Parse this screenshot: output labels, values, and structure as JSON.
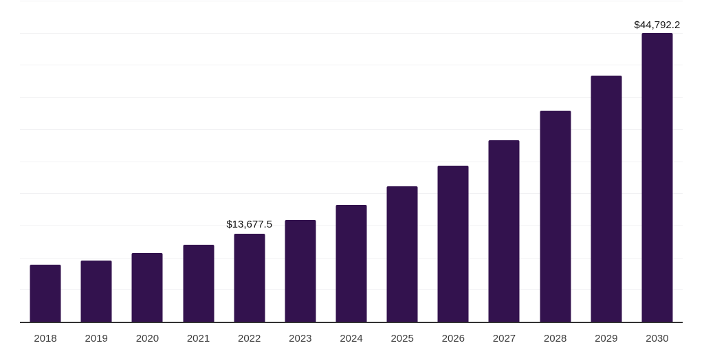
{
  "chart_data": {
    "type": "bar",
    "title": "",
    "xlabel": "",
    "ylabel": "",
    "categories": [
      "2018",
      "2019",
      "2020",
      "2021",
      "2022",
      "2023",
      "2024",
      "2025",
      "2026",
      "2027",
      "2028",
      "2029",
      "2030"
    ],
    "values": [
      8870,
      9530,
      10690,
      11960,
      13677.5,
      15730,
      18140,
      20980,
      24240,
      28170,
      32750,
      38170,
      44792.2
    ],
    "value_labels": {
      "2022": "$13,677.5",
      "2030": "$44,792.2"
    },
    "ylim": [
      0,
      50000
    ],
    "gridline_step": 5000,
    "grid": true,
    "legend_position": "none",
    "colors": {
      "bar": "#33124e",
      "axis_line": "#333333",
      "gridline": "#f1f1f3",
      "tick_label": "#3d3d3d",
      "data_label": "#111111",
      "background": "#ffffff"
    }
  }
}
